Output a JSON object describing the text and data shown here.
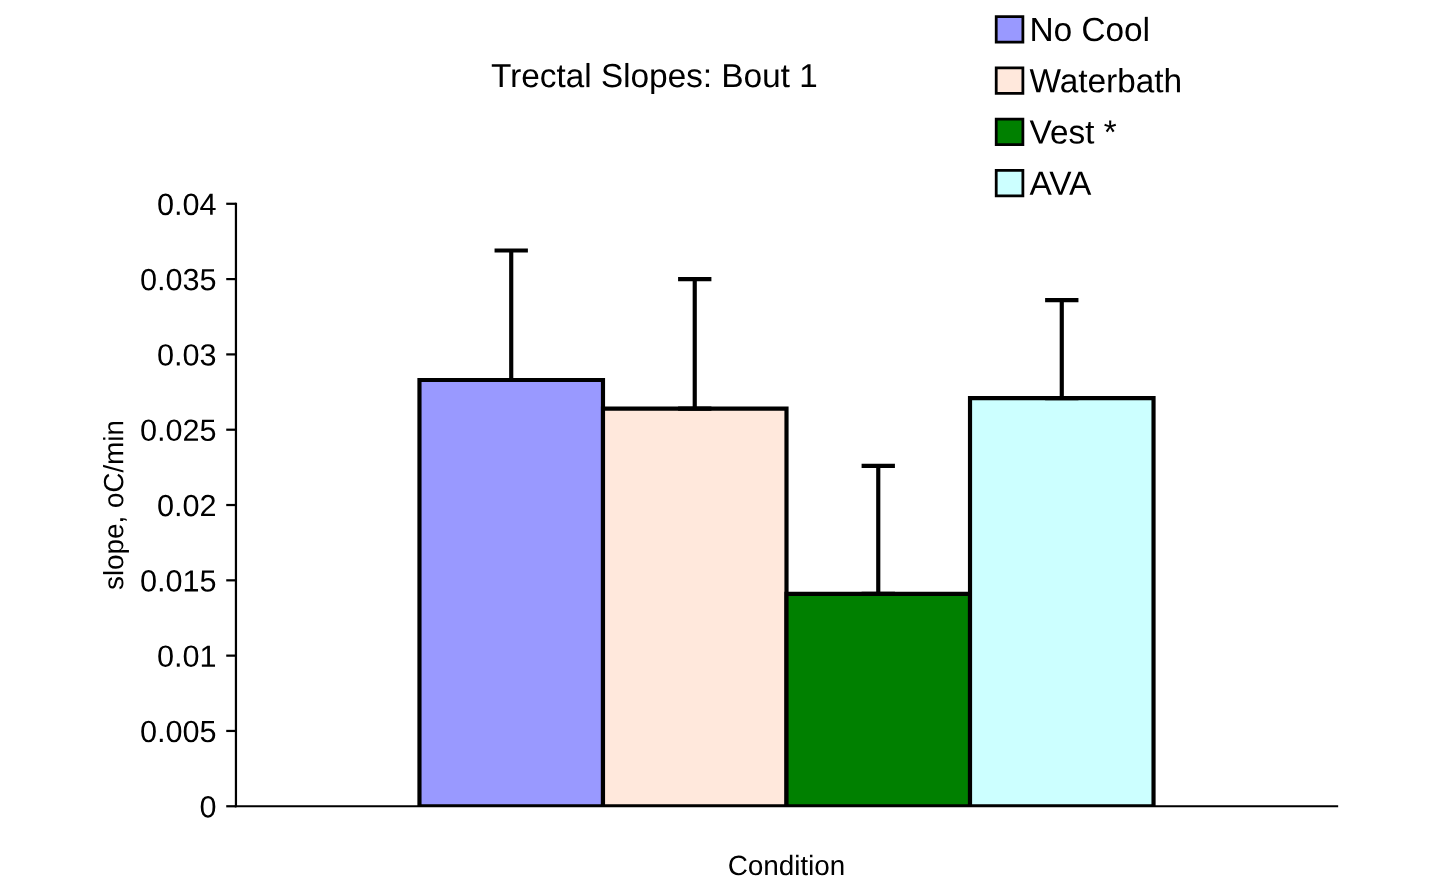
{
  "chart_data": {
    "type": "bar",
    "title": "Trectal Slopes: Bout 1",
    "xlabel": "Condition",
    "ylabel": "slope, oC/min",
    "categories": [
      null
    ],
    "series": [
      {
        "name": "No Cool",
        "color": "#9999ff",
        "values": [
          0.0283
        ],
        "errors": [
          [
            0.0283,
            0.0369
          ]
        ]
      },
      {
        "name": "Waterbath",
        "color": "#ffe8dc",
        "values": [
          0.0264
        ],
        "errors": [
          [
            0.0264,
            0.035
          ]
        ]
      },
      {
        "name": "Vest *",
        "color": "#008000",
        "values": [
          0.0141
        ],
        "errors": [
          [
            0.0141,
            0.0226
          ]
        ]
      },
      {
        "name": "AVA",
        "color": "#ccffff",
        "values": [
          0.0271
        ],
        "errors": [
          [
            0.0271,
            0.0336
          ]
        ]
      }
    ],
    "ylim": [
      0,
      0.04
    ],
    "yticks": [
      0,
      0.005,
      0.01,
      0.015,
      0.02,
      0.025,
      0.03,
      0.035,
      0.04
    ],
    "grid": false,
    "legend": "top right"
  }
}
